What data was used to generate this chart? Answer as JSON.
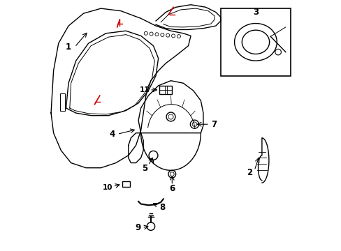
{
  "background_color": "#ffffff",
  "line_color": "#000000",
  "red_line_color": "#cc0000",
  "fig_width": 4.89,
  "fig_height": 3.6,
  "dpi": 100
}
